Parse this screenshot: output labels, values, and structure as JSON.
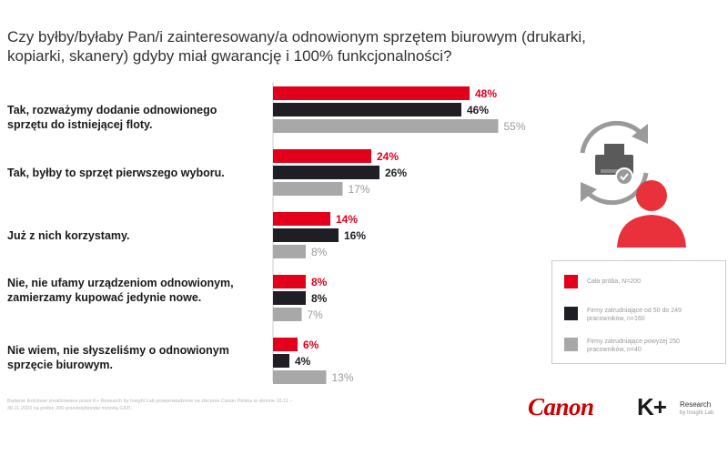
{
  "title": "Czy byłby/byłaby Pan/i zainteresowany/a odnowionym sprzętem biurowym (drukarki, kopiarki, skanery) gdyby miał gwarancję i 100% funkcjonalności?",
  "colors": {
    "total": "#e3001b",
    "mid": "#1e1e24",
    "large": "#a8a8a8"
  },
  "chart_data": {
    "type": "bar",
    "orientation": "horizontal",
    "categories": [
      "Tak, rozważymy dodanie odnowionego sprzętu do istniejącej floty.",
      "Tak, byłby to sprzęt pierwszego wyboru.",
      "Już z nich korzystamy.",
      "Nie, nie ufamy urządzeniom odnowionym, zamierzamy kupować jedynie nowe.",
      "Nie wiem, nie słyszeliśmy o odnowionym sprzęcie biurowym."
    ],
    "series": [
      {
        "name": "Cała próba, N=200",
        "color": "#e3001b",
        "label_color": "#e3001b",
        "values": [
          48,
          24,
          14,
          8,
          6
        ],
        "labels": [
          "48%",
          "24%",
          "14%",
          "8%",
          "6%"
        ]
      },
      {
        "name": "Firmy zatrudniające od 50 do 249 pracowników, n=160",
        "color": "#1e1e24",
        "label_color": "#1e1e24",
        "values": [
          46,
          26,
          16,
          8,
          4
        ],
        "labels": [
          "46%",
          "26%",
          "16%",
          "8%",
          "4%"
        ]
      },
      {
        "name": "Firmy zatrudniające powyżej 250 pracowników, n=40",
        "color": "#a8a8a8",
        "label_color": "#9a9a9a",
        "values": [
          55,
          17,
          8,
          7,
          13
        ],
        "labels": [
          "55%",
          "17%",
          "8%",
          "7%",
          "13%"
        ]
      }
    ],
    "xlim": [
      0,
      100
    ],
    "legend_position": "right"
  },
  "legend": [
    {
      "color": "#e3001b",
      "text": "Cała próba, N=200"
    },
    {
      "color": "#1e1e24",
      "text": "Firmy zatrudniające od 50 do 249 pracowników, n=160"
    },
    {
      "color": "#a8a8a8",
      "text": "Firmy zatrudniające powyżej 250 pracowników, n=40"
    }
  ],
  "footnote": "Badanie ilościowe zrealizowane przez K+ Research by Insight Lab przeprowadzone na zlecenie Canon Polska w okresie 10.11 – 30.11.2023 na próbie 200 przedsiębiorstw metodą CATI.",
  "brand": {
    "canon": "Canon",
    "kplus": "K+",
    "kplus_line1": "Research",
    "kplus_line2": "by Insight Lab"
  },
  "icon": "refurbished-printer-user-icon"
}
